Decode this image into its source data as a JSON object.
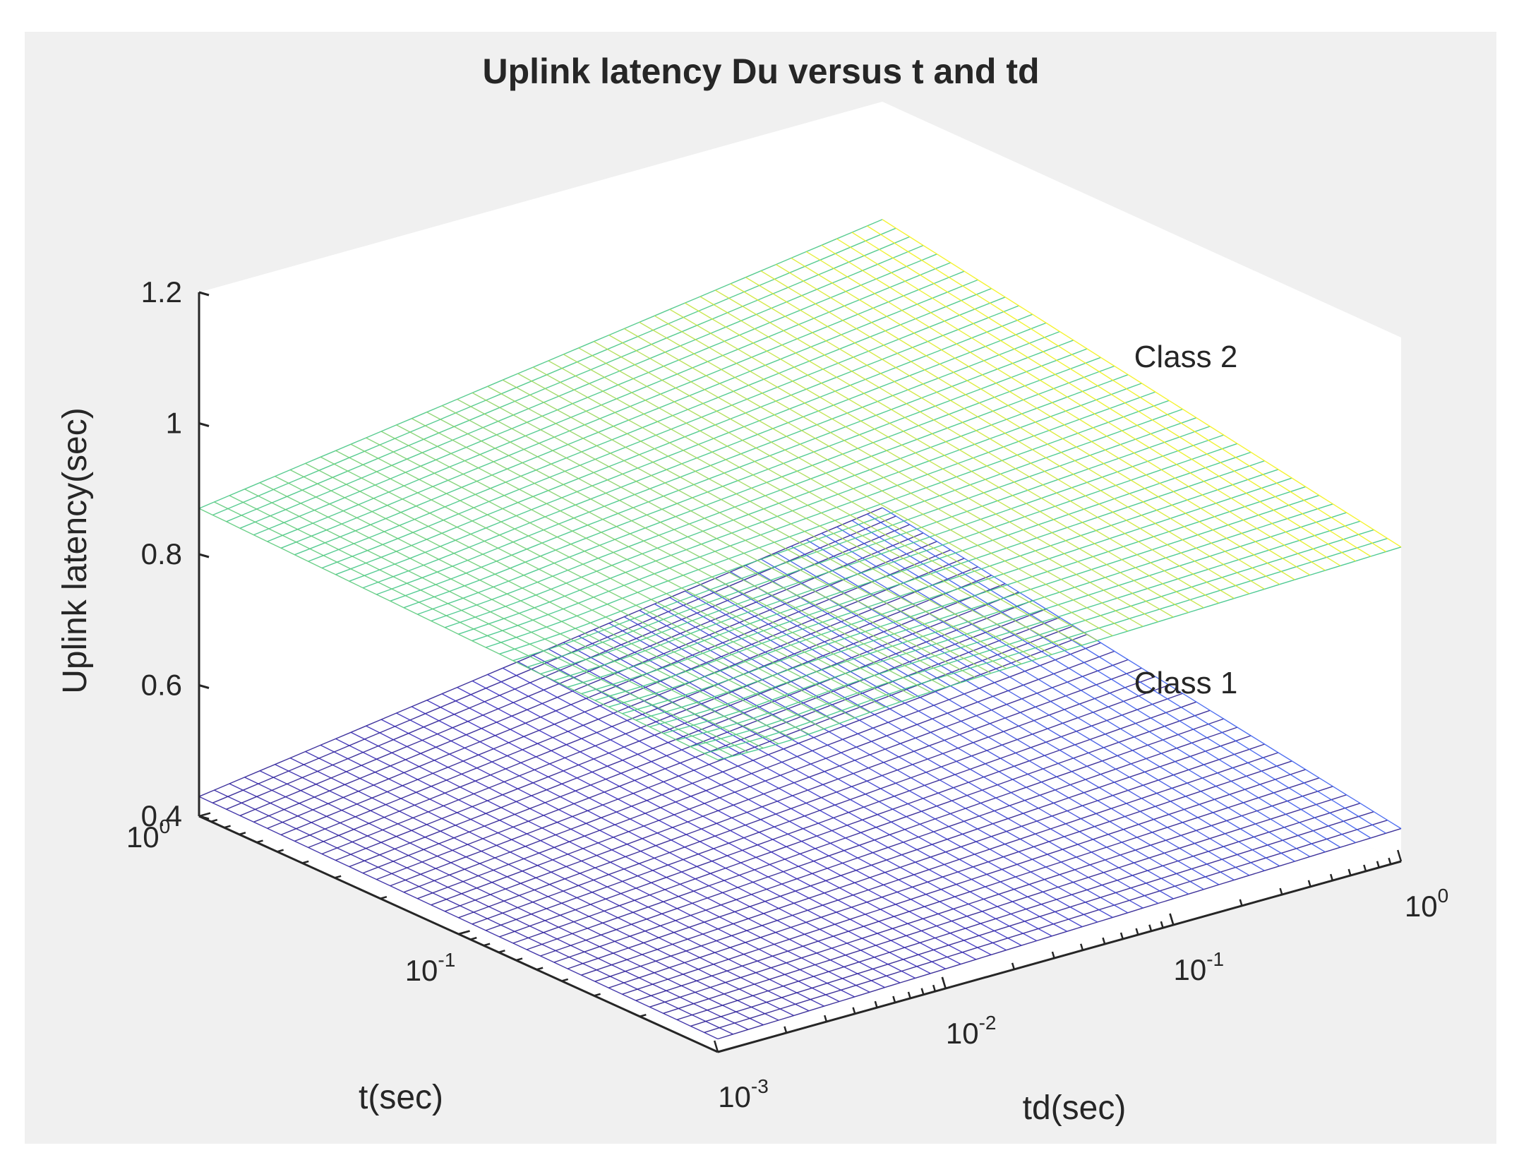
{
  "chart_data": {
    "type": "surface",
    "title": "Uplink latency Du versus t and td",
    "xlabel": "td(sec)",
    "ylabel": "t(sec)",
    "zlabel": "Uplink latency(sec)",
    "x_scale": "log",
    "y_scale": "log",
    "x_range": [
      0.001,
      1
    ],
    "y_range": [
      0.01,
      1
    ],
    "z_range": [
      0.4,
      1.2
    ],
    "x_ticks": [
      {
        "base": "10",
        "exp": "-3",
        "value": 0.001
      },
      {
        "base": "10",
        "exp": "-2",
        "value": 0.01
      },
      {
        "base": "10",
        "exp": "-1",
        "value": 0.1
      },
      {
        "base": "10",
        "exp": "0",
        "value": 1
      }
    ],
    "y_ticks": [
      {
        "base": "10",
        "exp": "-1",
        "value": 0.1
      },
      {
        "base": "10",
        "exp": "0",
        "value": 1
      }
    ],
    "z_ticks": [
      "0.4",
      "0.6",
      "0.8",
      "1",
      "1.2"
    ],
    "z_tick_values": [
      0.4,
      0.6,
      0.8,
      1.0,
      1.2
    ],
    "series": [
      {
        "name": "Class 1",
        "colormap": [
          "#2a1d8f",
          "#3b2fbf",
          "#3f63f0"
        ],
        "corner_values": {
          "td_min_t_max": 0.43,
          "td_min_t_min": 0.42,
          "td_max_t_max": 0.58,
          "td_max_t_min": 0.45
        },
        "min_region_value": 0.42
      },
      {
        "name": "Class 2",
        "colormap": [
          "#3ec58a",
          "#8fd36a",
          "#f5f21e"
        ],
        "corner_values": {
          "td_min_t_max": 0.87,
          "td_min_t_min": 0.85,
          "td_max_t_max": 1.02,
          "td_max_t_min": 0.88
        },
        "min_region_value": 0.84
      }
    ],
    "annotations": [
      "Class 2",
      "Class 1"
    ],
    "grid": false,
    "background": "#f0f0f0"
  }
}
